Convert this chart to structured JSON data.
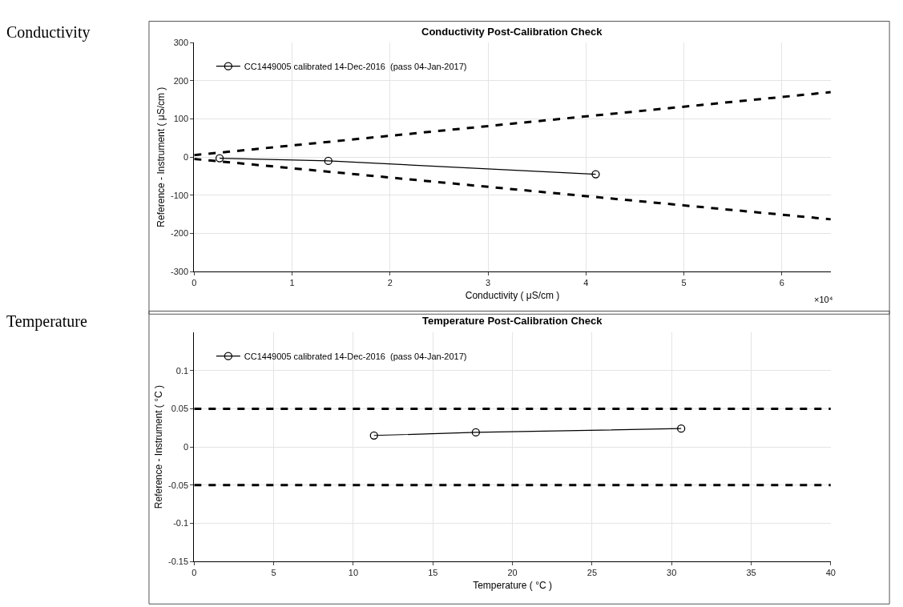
{
  "chart_data": [
    {
      "type": "line",
      "title": "Conductivity Post-Calibration Check",
      "xlabel": "Conductivity ( μS/cm )",
      "ylabel": "Reference - Instrument ( μS/cm )",
      "annotations": [
        "Conductivity",
        "×10⁴"
      ],
      "series": [
        {
          "name": "CC1449005 calibrated 14-Dec-2016  (pass 04-Jan-2017)",
          "color": "#000000",
          "x": [
            0.26,
            1.37,
            4.1
          ],
          "values": [
            -3,
            -10,
            -45
          ],
          "marker": "circle",
          "line_style": "solid"
        },
        {
          "color": "#000000",
          "x": [
            0,
            6.5
          ],
          "values": [
            5,
            170
          ],
          "marker": "none",
          "line_style": "dashed"
        },
        {
          "color": "#000000",
          "x": [
            0,
            6.5
          ],
          "values": [
            -5,
            -163
          ],
          "marker": "none",
          "line_style": "dashed"
        }
      ],
      "xlim": [
        0,
        6.5
      ],
      "xticks": [
        0,
        1,
        2,
        3,
        4,
        5,
        6
      ],
      "ylim": [
        -300,
        300
      ],
      "yticks": [
        -300,
        -200,
        -100,
        0,
        100,
        200,
        300
      ],
      "grid": true,
      "legend": "top left"
    },
    {
      "type": "line",
      "title": "Temperature Post-Calibration Check",
      "xlabel": "Temperature ( °C )",
      "ylabel": "Reference - Instrument ( °C )",
      "annotations": [
        "Temperature"
      ],
      "series": [
        {
          "name": "CC1449005 calibrated 14-Dec-2016  (pass 04-Jan-2017)",
          "color": "#000000",
          "x": [
            11.3,
            17.7,
            30.6
          ],
          "values": [
            0.015,
            0.019,
            0.024
          ],
          "marker": "circle",
          "line_style": "solid"
        },
        {
          "color": "#000000",
          "x": [
            0,
            40
          ],
          "values": [
            0.05,
            0.05
          ],
          "marker": "none",
          "line_style": "dashed"
        },
        {
          "color": "#000000",
          "x": [
            0,
            40
          ],
          "values": [
            -0.05,
            -0.05
          ],
          "marker": "none",
          "line_style": "dashed"
        }
      ],
      "xlim": [
        0,
        40
      ],
      "xticks": [
        0,
        5,
        10,
        15,
        20,
        25,
        30,
        35,
        40
      ],
      "ylim": [
        -0.15,
        0.15
      ],
      "yticks": [
        -0.15,
        -0.1,
        -0.05,
        0,
        0.05,
        0.1
      ],
      "grid": true,
      "legend": "top left"
    }
  ]
}
